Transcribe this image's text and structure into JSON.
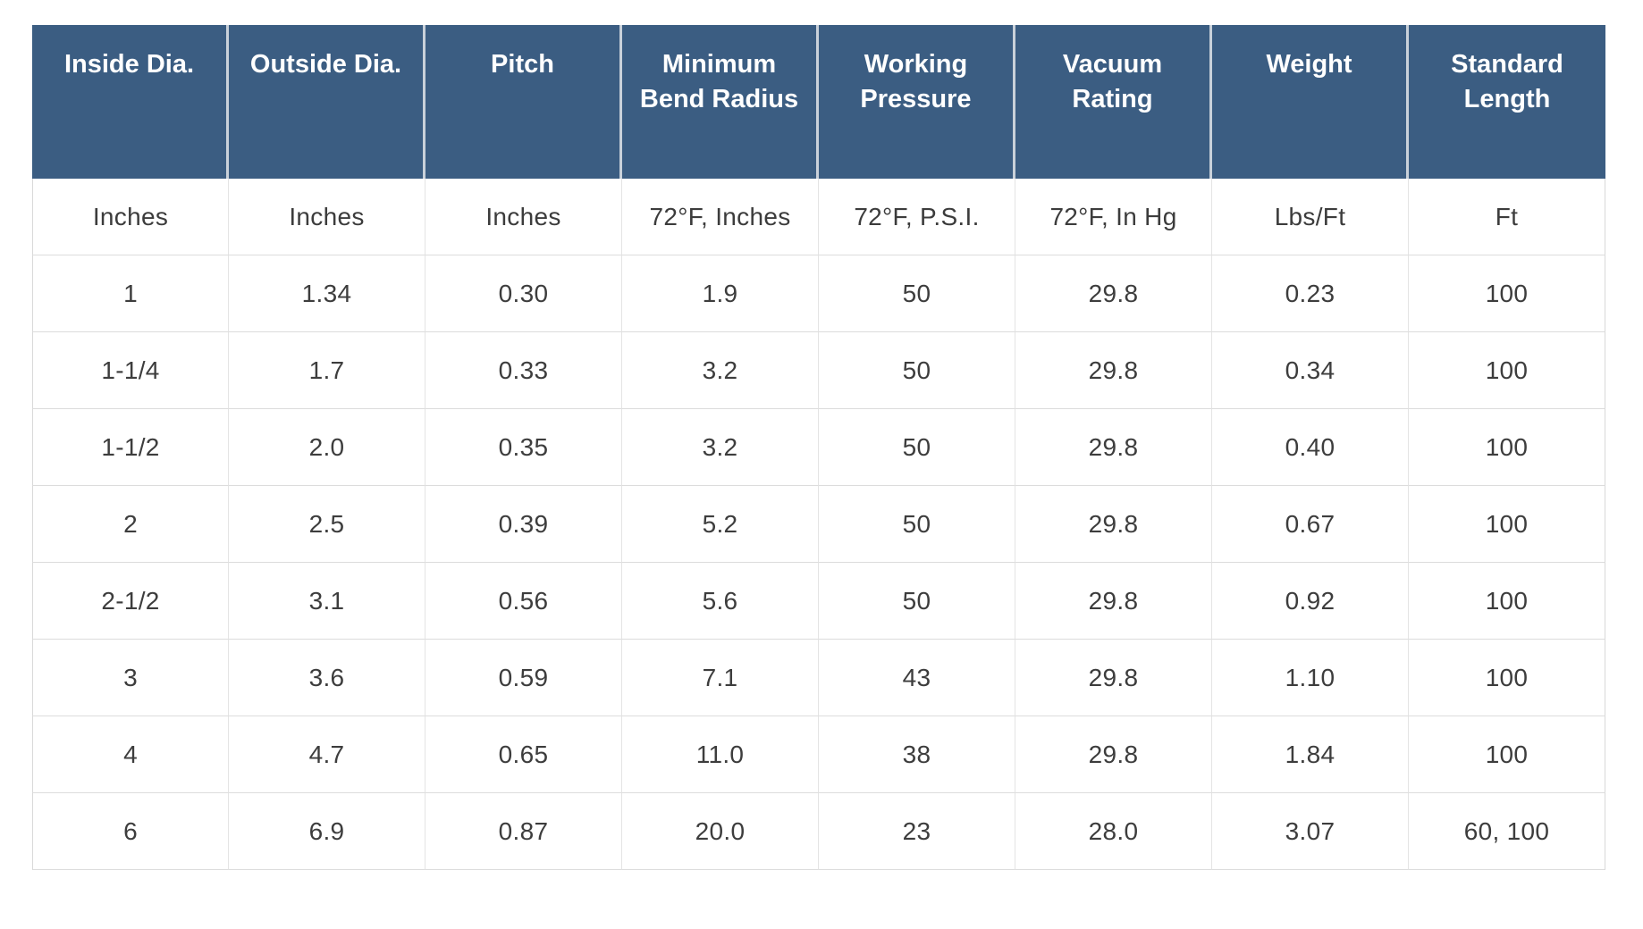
{
  "table": {
    "headers": [
      "Inside Dia.",
      "Outside Dia.",
      "Pitch",
      "Minimum Bend Radius",
      "Working Pressure",
      "Vacuum Rating",
      "Weight",
      "Standard Length"
    ],
    "units": [
      "Inches",
      "Inches",
      "Inches",
      "72°F, Inches",
      "72°F, P.S.I.",
      "72°F, In Hg",
      "Lbs/Ft",
      "Ft"
    ],
    "rows": [
      [
        "1",
        "1.34",
        "0.30",
        "1.9",
        "50",
        "29.8",
        "0.23",
        "100"
      ],
      [
        "1-1/4",
        "1.7",
        "0.33",
        "3.2",
        "50",
        "29.8",
        "0.34",
        "100"
      ],
      [
        "1-1/2",
        "2.0",
        "0.35",
        "3.2",
        "50",
        "29.8",
        "0.40",
        "100"
      ],
      [
        "2",
        "2.5",
        "0.39",
        "5.2",
        "50",
        "29.8",
        "0.67",
        "100"
      ],
      [
        "2-1/2",
        "3.1",
        "0.56",
        "5.6",
        "50",
        "29.8",
        "0.92",
        "100"
      ],
      [
        "3",
        "3.6",
        "0.59",
        "7.1",
        "43",
        "29.8",
        "1.10",
        "100"
      ],
      [
        "4",
        "4.7",
        "0.65",
        "11.0",
        "38",
        "29.8",
        "1.84",
        "100"
      ],
      [
        "6",
        "6.9",
        "0.87",
        "20.0",
        "23",
        "28.0",
        "3.07",
        "60, 100"
      ]
    ],
    "colors": {
      "header_bg": "#3b5d82",
      "header_text": "#ffffff",
      "body_text": "#3d3d3d",
      "grid_line": "#dcdcdc",
      "header_divider": "#c9d1da"
    }
  }
}
